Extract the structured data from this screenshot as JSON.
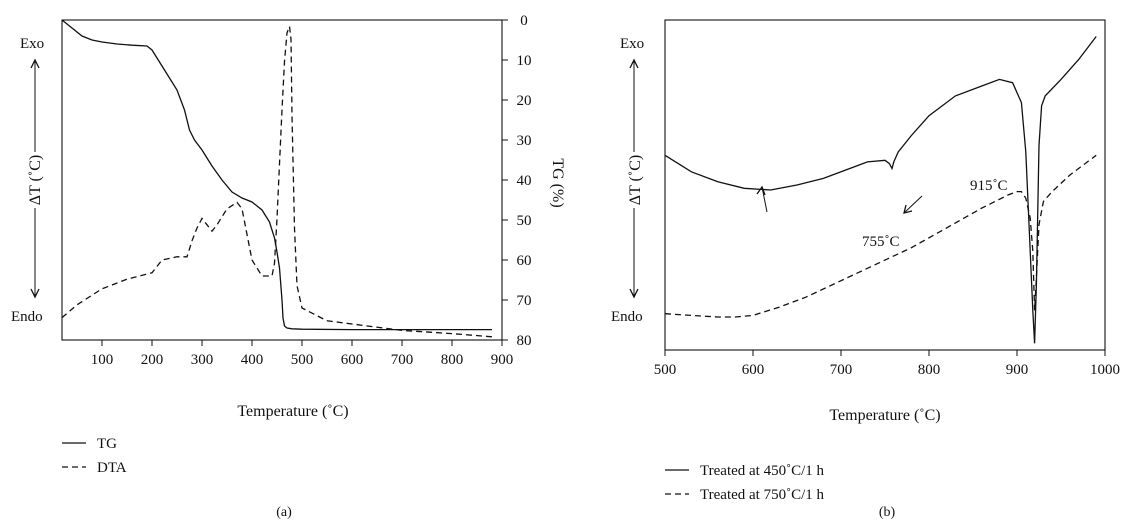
{
  "chart_data": [
    {
      "type": "line",
      "panel_label": "(a)",
      "xlabel": "Temperature (˚C)",
      "ylabel_left": "ΔT (˚C)",
      "ylabel_left_top": "Exo",
      "ylabel_left_bottom": "Endo",
      "ylabel_right": "TG (%)",
      "xlim": [
        20,
        900
      ],
      "ylim_right": [
        0,
        80
      ],
      "right_axis_inverted": true,
      "x_ticks": [
        100,
        200,
        300,
        400,
        500,
        600,
        700,
        800,
        900
      ],
      "y_right_ticks": [
        0,
        10,
        20,
        30,
        40,
        50,
        60,
        70,
        80
      ],
      "legend_position": "below-left",
      "series": [
        {
          "name": "TG",
          "axis": "right",
          "style": "solid",
          "x": [
            20,
            40,
            60,
            80,
            100,
            130,
            160,
            190,
            200,
            215,
            230,
            250,
            265,
            275,
            285,
            300,
            320,
            340,
            360,
            380,
            400,
            420,
            435,
            445,
            450,
            455,
            460,
            462,
            465,
            470,
            480,
            500,
            600,
            700,
            800,
            880
          ],
          "y": [
            0,
            2,
            4,
            5,
            5.5,
            6,
            6.3,
            6.5,
            7.5,
            10.5,
            13.5,
            17.5,
            22.5,
            27.5,
            30,
            32.5,
            36.5,
            40,
            43,
            44.5,
            45.5,
            47.5,
            50.5,
            54.5,
            58,
            62,
            70,
            74.5,
            76.5,
            77,
            77.2,
            77.3,
            77.4,
            77.4,
            77.4,
            77.4
          ]
        },
        {
          "name": "DTA",
          "axis": "left",
          "style": "dashed",
          "x": [
            20,
            50,
            100,
            150,
            200,
            220,
            250,
            270,
            280,
            290,
            300,
            310,
            320,
            330,
            350,
            370,
            380,
            390,
            400,
            420,
            440,
            445,
            450,
            455,
            460,
            465,
            470,
            475,
            478,
            480,
            485,
            490,
            500,
            550,
            600,
            700,
            800,
            880
          ],
          "y": [
            0.07,
            0.11,
            0.16,
            0.19,
            0.21,
            0.25,
            0.26,
            0.26,
            0.31,
            0.35,
            0.38,
            0.36,
            0.34,
            0.36,
            0.41,
            0.43,
            0.41,
            0.33,
            0.25,
            0.2,
            0.2,
            0.24,
            0.38,
            0.55,
            0.72,
            0.87,
            0.96,
            0.98,
            0.94,
            0.7,
            0.35,
            0.17,
            0.1,
            0.06,
            0.05,
            0.03,
            0.02,
            0.01
          ]
        }
      ]
    },
    {
      "type": "line",
      "panel_label": "(b)",
      "xlabel": "Temperature (˚C)",
      "ylabel_left": "ΔT (˚C)",
      "ylabel_left_top": "Exo",
      "ylabel_left_bottom": "Endo",
      "xlim": [
        500,
        1000
      ],
      "x_ticks": [
        500,
        600,
        700,
        800,
        900,
        1000
      ],
      "legend_position": "below-left",
      "annotations": [
        {
          "text": "755˚C",
          "x": 755
        },
        {
          "text": "915˚C",
          "x": 915
        }
      ],
      "series": [
        {
          "name": "Treated at 450˚C/1 h",
          "style": "solid",
          "x": [
            500,
            530,
            560,
            590,
            620,
            650,
            680,
            710,
            730,
            750,
            755,
            758,
            760,
            765,
            780,
            800,
            830,
            860,
            880,
            895,
            905,
            910,
            915,
            918,
            920,
            922,
            925,
            928,
            932,
            950,
            970,
            990
          ],
          "y": [
            0.59,
            0.54,
            0.51,
            0.49,
            0.485,
            0.5,
            0.52,
            0.55,
            0.57,
            0.575,
            0.565,
            0.55,
            0.57,
            0.6,
            0.65,
            0.71,
            0.77,
            0.8,
            0.82,
            0.81,
            0.75,
            0.6,
            0.3,
            0.12,
            0.02,
            0.2,
            0.62,
            0.74,
            0.77,
            0.82,
            0.88,
            0.95
          ]
        },
        {
          "name": "Treated at 750˚C/1 h",
          "style": "dashed",
          "x": [
            500,
            530,
            560,
            580,
            600,
            630,
            660,
            700,
            740,
            780,
            820,
            860,
            890,
            900,
            905,
            910,
            915,
            918,
            920,
            922,
            925,
            930,
            940,
            960,
            980,
            990
          ],
          "y": [
            0.11,
            0.105,
            0.1,
            0.1,
            0.105,
            0.13,
            0.16,
            0.21,
            0.26,
            0.31,
            0.37,
            0.43,
            0.47,
            0.48,
            0.48,
            0.46,
            0.4,
            0.3,
            0.12,
            0.22,
            0.38,
            0.45,
            0.48,
            0.53,
            0.57,
            0.59
          ]
        }
      ]
    }
  ]
}
